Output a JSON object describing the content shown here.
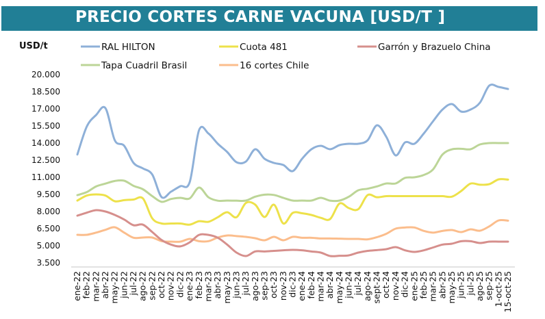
{
  "chart_data": {
    "type": "line",
    "title": "PRECIO CORTES CARNE VACUNA [USD/T ]",
    "ylabel": "USD/t",
    "ylim": [
      3500,
      20000
    ],
    "yticks": [
      "3.500",
      "5.000",
      "6.500",
      "8.000",
      "9.500",
      "11.000",
      "12.500",
      "14.000",
      "15.500",
      "17.000",
      "18.500",
      "20.000"
    ],
    "ytick_values": [
      3500,
      5000,
      6500,
      8000,
      9500,
      11000,
      12500,
      14000,
      15500,
      17000,
      18500,
      20000
    ],
    "grid": false,
    "legend_position": "top",
    "categories": [
      "ene-22",
      "feb-22",
      "mar-22",
      "abr-22",
      "may-22",
      "jun-22",
      "jul-22",
      "ago-22",
      "sep-22",
      "oct-22",
      "nov-22",
      "dic-22",
      "ene-23",
      "feb-23",
      "mar-23",
      "abr-23",
      "may-23",
      "jun-23",
      "jul-23",
      "ago-23",
      "sep-23",
      "oct-23",
      "nov-23",
      "dic-23",
      "ene-24",
      "feb-24",
      "mar-24",
      "abr-24",
      "may-24",
      "jun-24",
      "jul-24",
      "ago-24",
      "sept-24",
      "oct-24",
      "nov-24",
      "dic-24",
      "ene-25",
      "feb-25",
      "mar-25",
      "abr-25",
      "may-25",
      "jun-25",
      "jul-25",
      "ago-25",
      "sep-25",
      "1-oct-25",
      "15-oct-25"
    ],
    "series": [
      {
        "name": "RAL HILTON",
        "color": "#8eb0d8",
        "values": [
          13000,
          15440,
          16460,
          17060,
          14240,
          13760,
          12260,
          11780,
          11240,
          9260,
          9740,
          10220,
          10580,
          15140,
          14840,
          13940,
          13220,
          12320,
          12380,
          13460,
          12620,
          12260,
          12080,
          11540,
          12620,
          13460,
          13760,
          13460,
          13820,
          13940,
          13940,
          14240,
          15560,
          14540,
          12920,
          14060,
          13940,
          14840,
          15920,
          16940,
          17420,
          16760,
          16940,
          17540,
          19040,
          18920,
          18740
        ]
      },
      {
        "name": "Cuota 481",
        "color": "#ede14a",
        "values": [
          8960,
          9400,
          9500,
          9400,
          8900,
          9000,
          9050,
          9150,
          7400,
          6950,
          6950,
          6950,
          6850,
          7150,
          7100,
          7500,
          7940,
          7500,
          8750,
          8600,
          7520,
          8600,
          6950,
          7880,
          7850,
          7700,
          7450,
          7340,
          8700,
          8300,
          8200,
          9440,
          9250,
          9350,
          9350,
          9350,
          9350,
          9350,
          9350,
          9350,
          9300,
          9800,
          10450,
          10350,
          10400,
          10820,
          10800
        ]
      },
      {
        "name": "Garrón y Brazuelo China",
        "color": "#d68f8c",
        "values": [
          7640,
          7900,
          8120,
          8000,
          7700,
          7300,
          6800,
          6850,
          6200,
          5500,
          5100,
          4950,
          5300,
          5950,
          5950,
          5700,
          5100,
          4400,
          4100,
          4500,
          4500,
          4550,
          4600,
          4640,
          4600,
          4500,
          4400,
          4100,
          4120,
          4160,
          4400,
          4550,
          4620,
          4700,
          4880,
          4600,
          4460,
          4600,
          4850,
          5100,
          5180,
          5400,
          5400,
          5240,
          5360,
          5360,
          5360
        ]
      },
      {
        "name": "Tapa Cuadril Brasil",
        "color": "#bcd597",
        "values": [
          9440,
          9700,
          10200,
          10450,
          10680,
          10700,
          10250,
          9950,
          9350,
          8850,
          9100,
          9200,
          9150,
          10100,
          9250,
          8950,
          8960,
          8950,
          8960,
          9300,
          9480,
          9450,
          9200,
          8960,
          8960,
          8960,
          9200,
          8950,
          8960,
          9300,
          9860,
          10000,
          10200,
          10460,
          10460,
          10950,
          11000,
          11200,
          11700,
          13000,
          13450,
          13500,
          13460,
          13880,
          14000,
          14000,
          14000
        ]
      },
      {
        "name": "16 cortes Chile",
        "color": "#fbbd8c",
        "values": [
          5960,
          5960,
          6150,
          6400,
          6620,
          6150,
          5700,
          5720,
          5720,
          5400,
          5360,
          5360,
          5600,
          5400,
          5400,
          5720,
          5900,
          5850,
          5780,
          5660,
          5480,
          5780,
          5480,
          5780,
          5700,
          5700,
          5640,
          5640,
          5620,
          5600,
          5600,
          5560,
          5750,
          6050,
          6500,
          6600,
          6600,
          6300,
          6150,
          6300,
          6380,
          6200,
          6440,
          6320,
          6700,
          7220,
          7200
        ]
      }
    ]
  },
  "colors": {
    "title_bar": "#217f96",
    "title_text": "#ffffff"
  }
}
